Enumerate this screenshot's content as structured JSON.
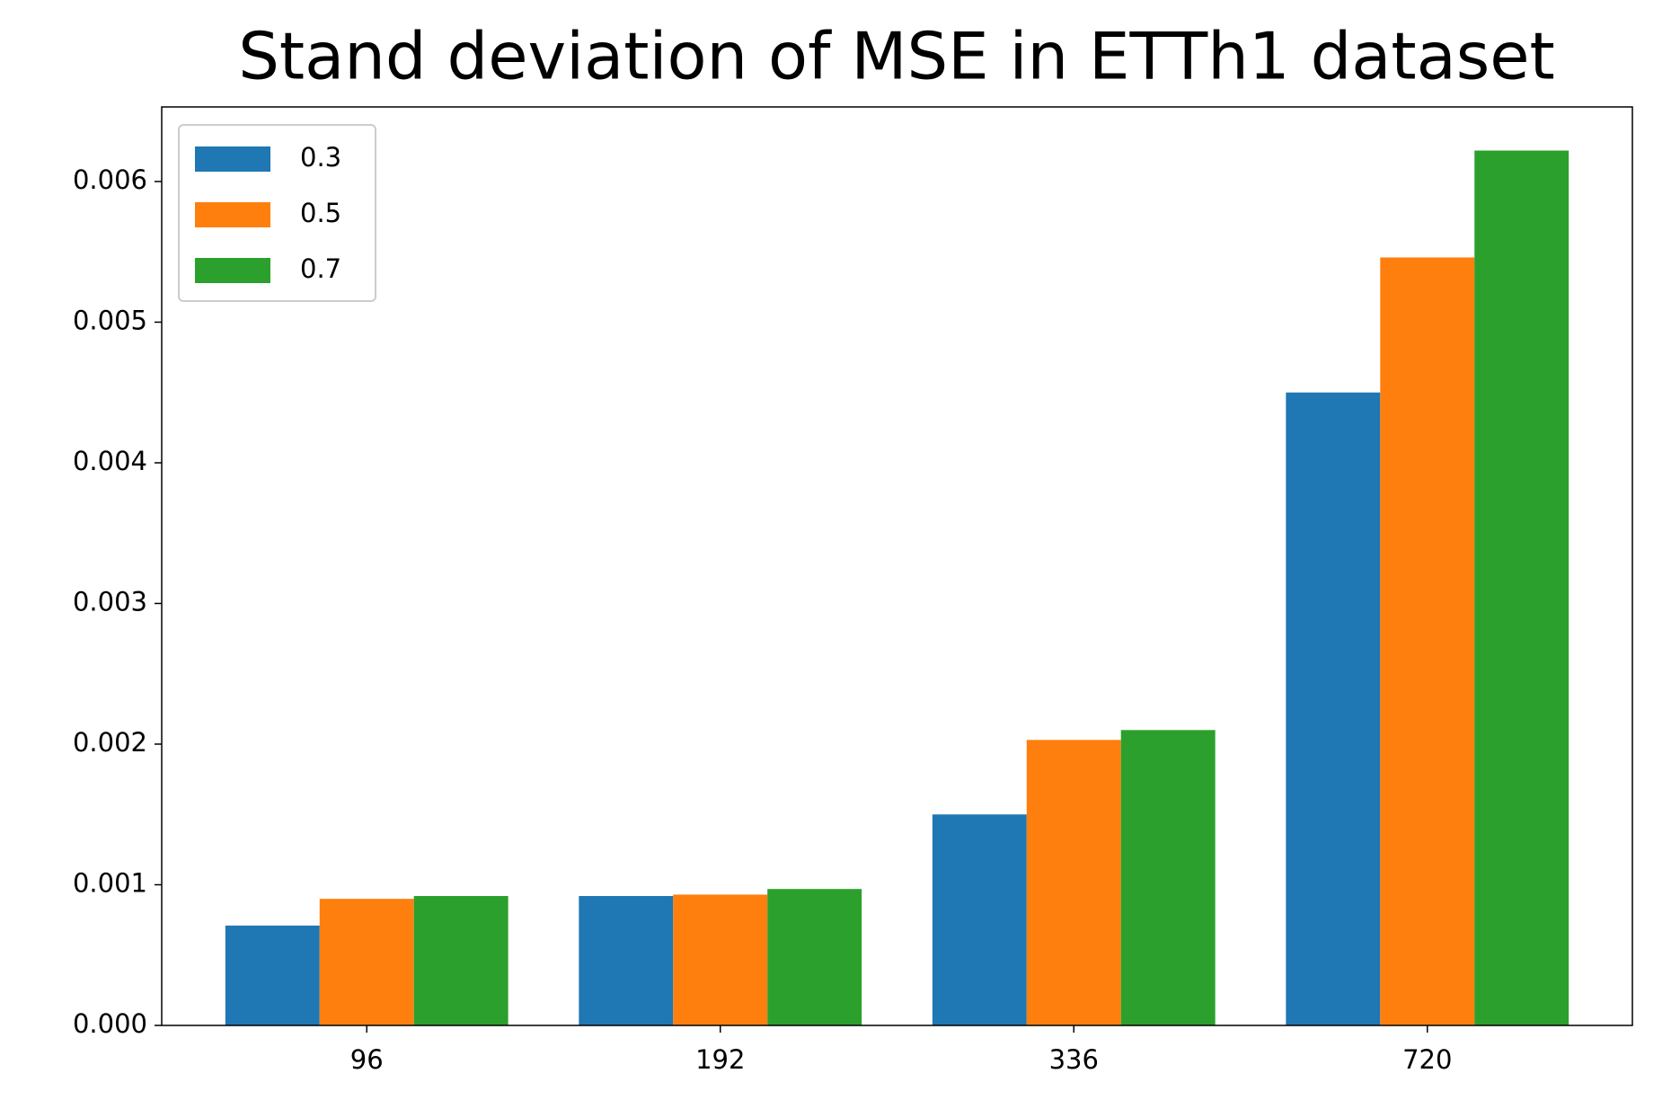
{
  "chart_data": {
    "type": "bar",
    "title": "Stand deviation of MSE in ETTh1 dataset",
    "categories": [
      "96",
      "192",
      "336",
      "720"
    ],
    "series": [
      {
        "name": "0.3",
        "color": "#1f77b4",
        "values": [
          0.00071,
          0.00092,
          0.0015,
          0.0045
        ]
      },
      {
        "name": "0.5",
        "color": "#ff7f0e",
        "values": [
          0.0009,
          0.00093,
          0.00203,
          0.00546
        ]
      },
      {
        "name": "0.7",
        "color": "#2ca02c",
        "values": [
          0.00092,
          0.00097,
          0.0021,
          0.00622
        ]
      }
    ],
    "ylim": [
      0,
      0.00653
    ],
    "yticks": [
      {
        "value": 0,
        "label": "0.000"
      },
      0.001,
      0.002,
      0.003,
      0.004,
      0.005,
      0.006
    ],
    "grid": false,
    "legend": "upper left"
  }
}
